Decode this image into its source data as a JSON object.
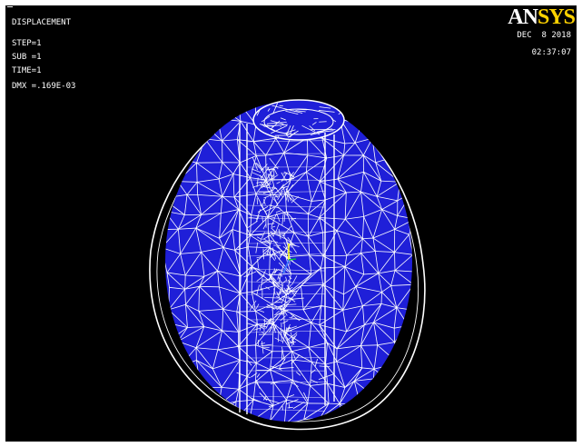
{
  "plot": {
    "title": "DISPLACEMENT",
    "step": "STEP=1",
    "sub": "SUB =1",
    "time": "TIME=1",
    "dmx": "DMX =.169E-03"
  },
  "header": {
    "brand_left": "AN",
    "brand_right": "SYS",
    "date": "DEC  8 2018",
    "time": "02:37:07"
  },
  "colors": {
    "background": "#000000",
    "solid_fill": "#1f1fd8",
    "mesh": "#ffffff",
    "brand_accent": "#ffd200",
    "triad_y": "#ffff00",
    "triad_x": "#3a7bff",
    "triad_z": "#00c040"
  },
  "icons": {
    "triad": "axis-triad-icon"
  }
}
